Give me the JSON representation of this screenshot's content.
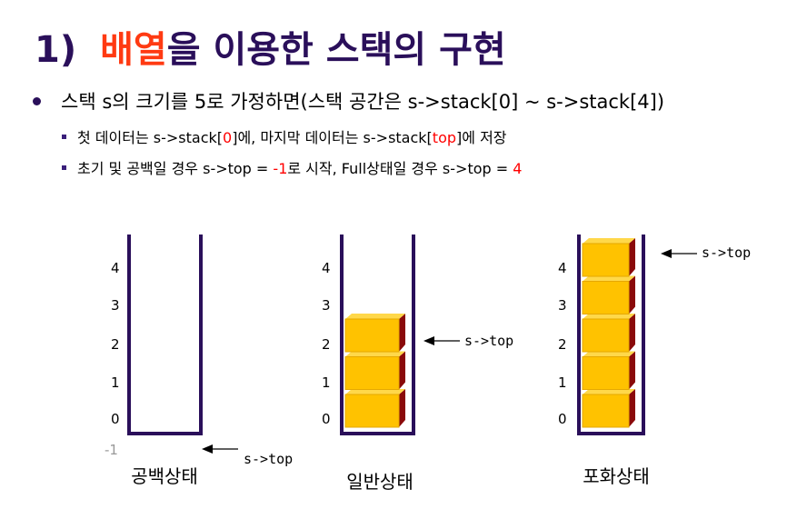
{
  "title": {
    "number": "1)",
    "highlight": "배열",
    "rest": "을 이용한 스택의 구현"
  },
  "bullets": {
    "main": "스택 s의 크기를 5로 가정하면(스택 공간은 s->stack[0] ~ s->stack[4])",
    "sub1": {
      "p1": "첫 데이터는 s->stack[",
      "r1": "0",
      "p2": "]에, 마지막 데이터는 s->stack[",
      "r2": "top",
      "p3": "]에 저장"
    },
    "sub2": {
      "p1": "초기 및 공백일 경우 s->top = ",
      "r1": "-1",
      "p2": "로 시작, Full상태일 경우 s->top = ",
      "r2": "4"
    }
  },
  "diagram": {
    "index_labels": [
      "4",
      "3",
      "2",
      "1",
      "0"
    ],
    "below_label": "-1",
    "pointer_label": "s->top",
    "stacks": [
      {
        "caption": "공백상태",
        "filled": 0,
        "top_index": -1
      },
      {
        "caption": "일반상태",
        "filled": 3,
        "top_index": 2
      },
      {
        "caption": "포화상태",
        "filled": 5,
        "top_index": 4
      }
    ],
    "colors": {
      "container": "#2a0f5a",
      "block_front": "#ffc200",
      "block_side": "#8a0a0a",
      "block_top": "#ffd84a"
    }
  }
}
